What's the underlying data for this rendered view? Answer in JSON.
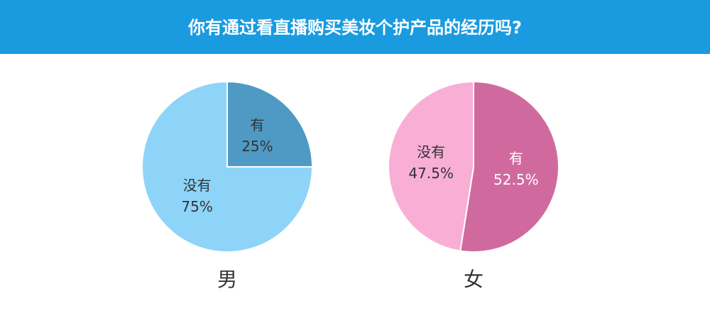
{
  "header": {
    "title": "你有通过看直播购买美妆个护产品的经历吗?"
  },
  "chart_data": [
    {
      "type": "pie",
      "title": "男",
      "categories": [
        "有",
        "没有"
      ],
      "values": [
        25,
        75
      ],
      "value_labels": [
        "25%",
        "75%"
      ],
      "colors": [
        "#4f9ac4",
        "#8dd4f8"
      ]
    },
    {
      "type": "pie",
      "title": "女",
      "categories": [
        "有",
        "没有"
      ],
      "values": [
        52.5,
        47.5
      ],
      "value_labels": [
        "52.5%",
        "47.5%"
      ],
      "colors": [
        "#d06a9e",
        "#f9aed6"
      ]
    }
  ]
}
